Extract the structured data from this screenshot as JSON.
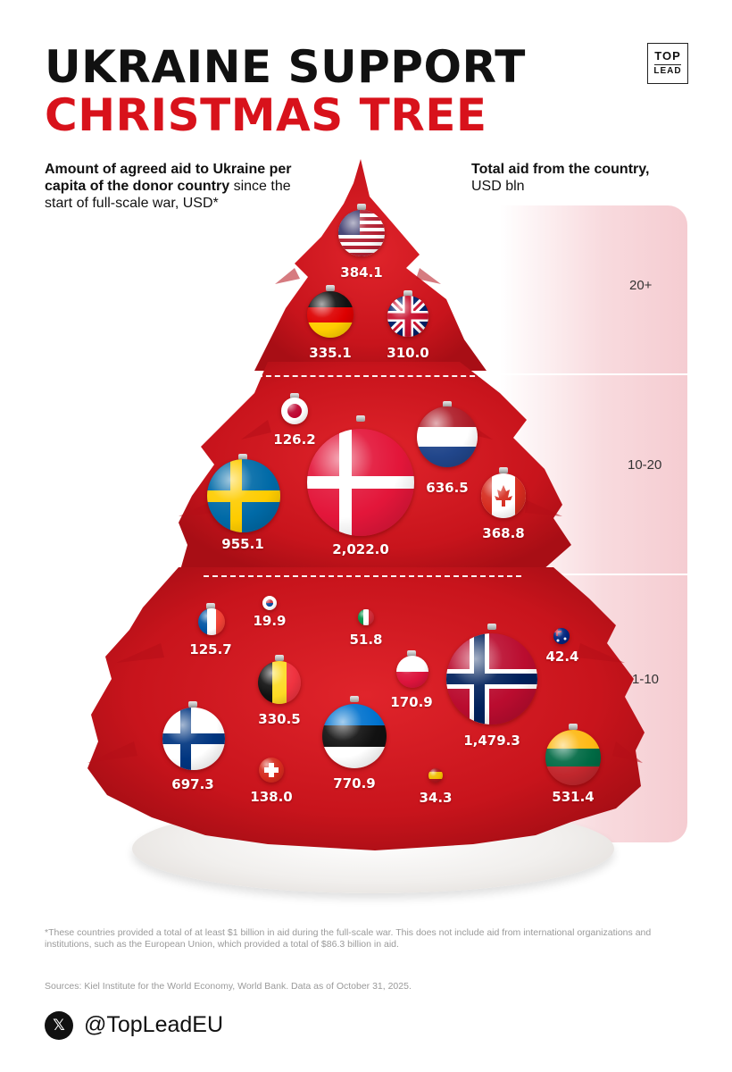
{
  "header": {
    "title_line1": "UKRAINE SUPPORT",
    "title_line2": "CHRISTMAS TREE",
    "logo_top": "TOP",
    "logo_bottom": "LEAD"
  },
  "left_subtitle": {
    "bold": "Amount of agreed aid to Ukraine per capita of the donor country",
    "regular": " since the start of full-scale war, USD*"
  },
  "right_subtitle": {
    "bold": "Total aid from the country,",
    "regular": "USD bln"
  },
  "tiers": [
    {
      "label": "20+"
    },
    {
      "label": "10-20"
    },
    {
      "label": "1-10"
    }
  ],
  "ornaments": [
    {
      "flag": "usa-flag-icon",
      "value": "384.1",
      "tier": "20+"
    },
    {
      "flag": "germany-flag-icon",
      "value": "335.1",
      "tier": "20+"
    },
    {
      "flag": "uk-flag-icon",
      "value": "310.0",
      "tier": "20+"
    },
    {
      "flag": "japan-flag-icon",
      "value": "126.2",
      "tier": "10-20"
    },
    {
      "flag": "denmark-flag-icon",
      "value": "2,022.0",
      "tier": "10-20"
    },
    {
      "flag": "netherlands-flag-icon",
      "value": "636.5",
      "tier": "10-20"
    },
    {
      "flag": "sweden-flag-icon",
      "value": "955.1",
      "tier": "10-20"
    },
    {
      "flag": "canada-flag-icon",
      "value": "368.8",
      "tier": "10-20"
    },
    {
      "flag": "france-flag-icon",
      "value": "125.7",
      "tier": "1-10"
    },
    {
      "flag": "south-korea-flag-icon",
      "value": "19.9",
      "tier": "1-10"
    },
    {
      "flag": "italy-flag-icon",
      "value": "51.8",
      "tier": "1-10"
    },
    {
      "flag": "norway-flag-icon",
      "value": "1,479.3",
      "tier": "1-10"
    },
    {
      "flag": "australia-flag-icon",
      "value": "42.4",
      "tier": "1-10"
    },
    {
      "flag": "belgium-flag-icon",
      "value": "330.5",
      "tier": "1-10"
    },
    {
      "flag": "poland-flag-icon",
      "value": "170.9",
      "tier": "1-10"
    },
    {
      "flag": "finland-flag-icon",
      "value": "697.3",
      "tier": "1-10"
    },
    {
      "flag": "estonia-flag-icon",
      "value": "770.9",
      "tier": "1-10"
    },
    {
      "flag": "switzerland-flag-icon",
      "value": "138.0",
      "tier": "1-10"
    },
    {
      "flag": "spain-flag-icon",
      "value": "34.3",
      "tier": "1-10"
    },
    {
      "flag": "lithuania-flag-icon",
      "value": "531.4",
      "tier": "1-10"
    }
  ],
  "footnote": "*These countries provided a total of at least $1 billion in aid during the full-scale war. This does not include aid from international organizations and institutions, such as the European Union, which provided a total of $86.3 billion in aid.",
  "sources": "Sources: Kiel Institute for the World Economy, World Bank. Data as of October 31, 2025.",
  "social": {
    "icon": "x-logo-icon",
    "handle": "@TopLeadEU"
  },
  "colors": {
    "accent_red": "#d8121b",
    "tree_red": "#c8141c",
    "band_pink": "#f5ccd1"
  }
}
